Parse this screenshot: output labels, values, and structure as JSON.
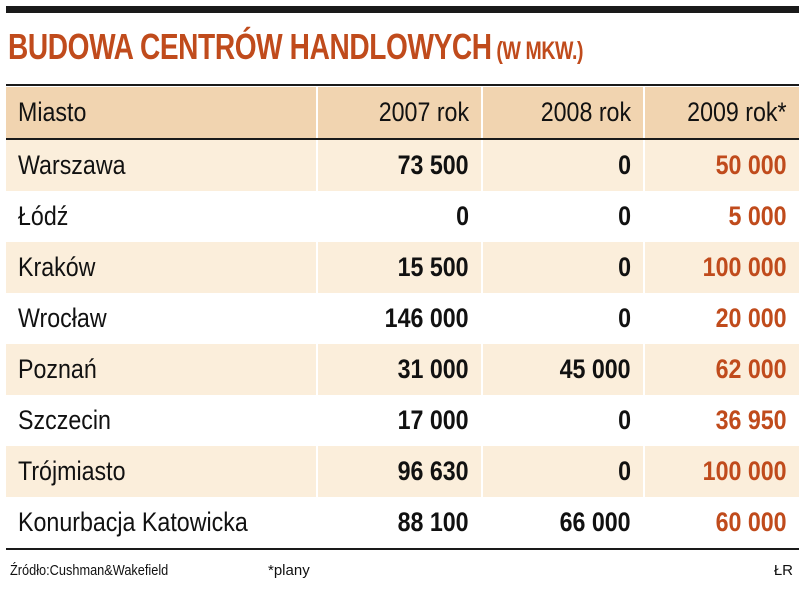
{
  "title": "BUDOWA CENTRÓW HANDLOWYCH",
  "unit": "(W MKW.)",
  "colors": {
    "accent": "#c04b1c",
    "header_bg": "#f1d4b0",
    "row_shade": "#fbeedb",
    "rule": "#1a1a1a"
  },
  "chart_data": {
    "type": "table",
    "title": "BUDOWA CENTRÓW HANDLOWYCH",
    "unit": "(W MKW.)",
    "columns": [
      "Miasto",
      "2007 rok",
      "2008 rok",
      "2009 rok*"
    ],
    "rows": [
      [
        "Warszawa",
        "73 500",
        "0",
        "50 000"
      ],
      [
        "Łódź",
        "0",
        "0",
        "5 000"
      ],
      [
        "Kraków",
        "15 500",
        "0",
        "100 000"
      ],
      [
        "Wrocław",
        "146 000",
        "0",
        "20 000"
      ],
      [
        "Poznań",
        "31 000",
        "45 000",
        "62 000"
      ],
      [
        "Szczecin",
        "17 000",
        "0",
        "36 950"
      ],
      [
        "Trójmiasto",
        "96 630",
        "0",
        "100 000"
      ],
      [
        "Konurbacja Katowicka",
        "88 100",
        "66 000",
        "60 000"
      ]
    ],
    "series": [
      {
        "name": "2007 rok",
        "values": [
          73500,
          0,
          15500,
          146000,
          31000,
          17000,
          96630,
          88100
        ]
      },
      {
        "name": "2008 rok",
        "values": [
          0,
          0,
          0,
          0,
          45000,
          0,
          0,
          66000
        ]
      },
      {
        "name": "2009 rok*",
        "values": [
          50000,
          5000,
          100000,
          20000,
          62000,
          36950,
          100000,
          60000
        ]
      }
    ]
  },
  "footer": {
    "source": "Źródło:Cushman&Wakefield",
    "note": "*plany",
    "author": "ŁR"
  }
}
